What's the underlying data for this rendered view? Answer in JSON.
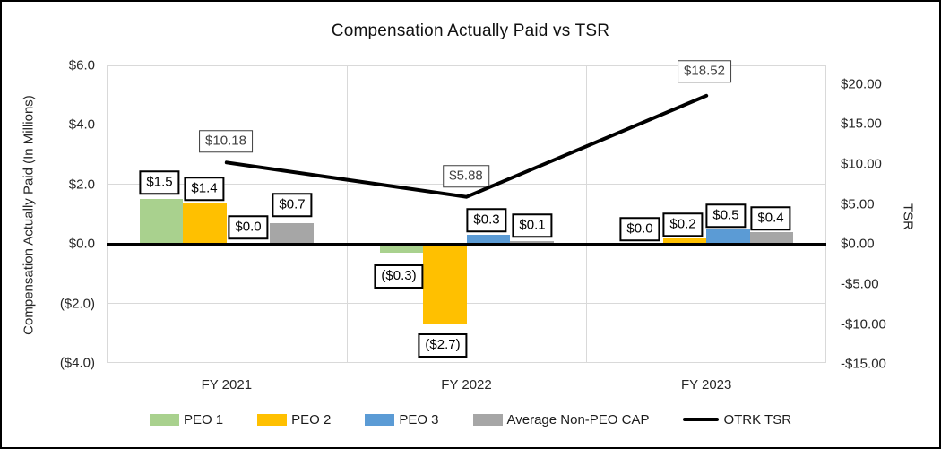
{
  "chart_data": {
    "type": "bar+line combo",
    "title": "Compensation Actually Paid vs TSR",
    "categories": [
      "FY 2021",
      "FY 2022",
      "FY 2023"
    ],
    "series": [
      {
        "name": "PEO 1",
        "type": "bar",
        "axis": "left",
        "color": "#a9d18e",
        "values": [
          1.5,
          -0.3,
          0.0
        ],
        "labels": [
          "$1.5",
          "($0.3)",
          "$0.0"
        ]
      },
      {
        "name": "PEO 2",
        "type": "bar",
        "axis": "left",
        "color": "#ffc000",
        "values": [
          1.4,
          -2.7,
          0.2
        ],
        "labels": [
          "$1.4",
          "($2.7)",
          "$0.2"
        ]
      },
      {
        "name": "PEO 3",
        "type": "bar",
        "axis": "left",
        "color": "#5b9bd5",
        "values": [
          0.0,
          0.3,
          0.5
        ],
        "labels": [
          "$0.0",
          "$0.3",
          "$0.5"
        ]
      },
      {
        "name": "Average Non-PEO CAP",
        "type": "bar",
        "axis": "left",
        "color": "#a6a6a6",
        "values": [
          0.7,
          0.1,
          0.4
        ],
        "labels": [
          "$0.7",
          "$0.1",
          "$0.4"
        ]
      },
      {
        "name": "OTRK TSR",
        "type": "line",
        "axis": "right",
        "color": "#000000",
        "values": [
          10.18,
          5.88,
          18.52
        ],
        "labels": [
          "$10.18",
          "$5.88",
          "$18.52"
        ]
      }
    ],
    "left_axis": {
      "label": "Compensation Actually Paid (In Millions)",
      "min": -4,
      "max": 6,
      "tick_step": 2,
      "ticks": [
        {
          "value": 6,
          "label": "$6.0"
        },
        {
          "value": 4,
          "label": "$4.0"
        },
        {
          "value": 2,
          "label": "$2.0"
        },
        {
          "value": 0,
          "label": "$0.0"
        },
        {
          "value": -2,
          "label": "($2.0)"
        },
        {
          "value": -4,
          "label": "($4.0)"
        }
      ]
    },
    "right_axis": {
      "label": "TSR",
      "min": -15,
      "max": 20,
      "tick_step": 5,
      "ticks": [
        {
          "value": 20,
          "label": "$20.00"
        },
        {
          "value": 15,
          "label": "$15.00"
        },
        {
          "value": 10,
          "label": "$10.00"
        },
        {
          "value": 5,
          "label": "$5.00"
        },
        {
          "value": 0,
          "label": "$0.00"
        },
        {
          "value": -5,
          "label": "-$5.00"
        },
        {
          "value": -10,
          "label": "-$10.00"
        },
        {
          "value": -15,
          "label": "-$15.00"
        }
      ]
    },
    "grid": true,
    "legend_position": "bottom"
  }
}
